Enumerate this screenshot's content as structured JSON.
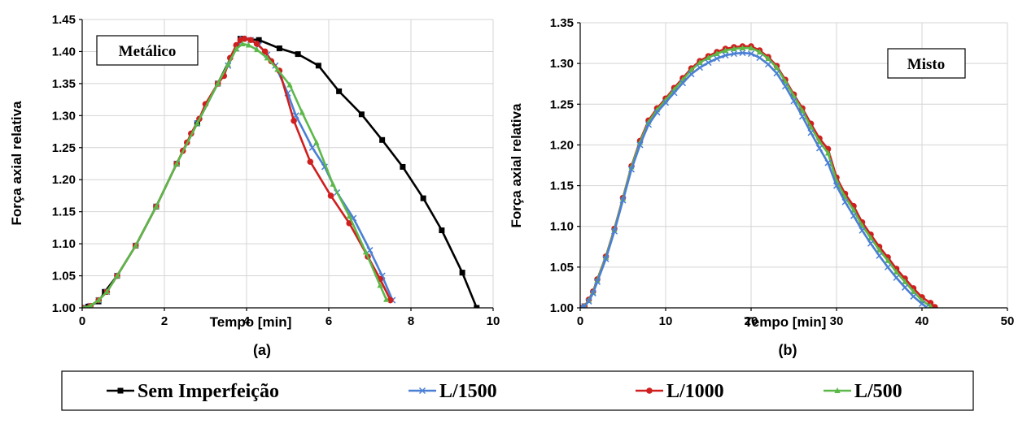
{
  "legend": [
    {
      "name": "Sem Imperfeição",
      "color": "#000000",
      "marker": "square"
    },
    {
      "name": "L/1500",
      "color": "#4a7fd4",
      "marker": "x"
    },
    {
      "name": "L/1000",
      "color": "#cf1f1f",
      "marker": "circle"
    },
    {
      "name": "L/500",
      "color": "#5cb848",
      "marker": "triangle"
    }
  ],
  "chart_data": [
    {
      "type": "line",
      "panel_label": "(a)",
      "annotation": "Metálico",
      "xlabel": "Tempo [min]",
      "ylabel": "Força axial relativa",
      "xlim": [
        0,
        10
      ],
      "ylim": [
        1.0,
        1.45
      ],
      "xticks": [
        "0",
        "2",
        "4",
        "6",
        "8",
        "10"
      ],
      "yticks": [
        "1.00",
        "1.05",
        "1.10",
        "1.15",
        "1.20",
        "1.25",
        "1.30",
        "1.35",
        "1.40",
        "1.45"
      ],
      "grid": true,
      "series": [
        {
          "name": "Sem Imperfeição",
          "color": "#000000",
          "marker": "square",
          "points": [
            [
              0,
              1.0
            ],
            [
              0.15,
              1.002
            ],
            [
              0.4,
              1.01
            ],
            [
              0.55,
              1.025
            ],
            [
              0.85,
              1.05
            ],
            [
              1.3,
              1.097
            ],
            [
              1.8,
              1.158
            ],
            [
              2.3,
              1.225
            ],
            [
              2.8,
              1.288
            ],
            [
              3.3,
              1.35
            ],
            [
              3.85,
              1.42
            ],
            [
              4.3,
              1.418
            ],
            [
              4.8,
              1.405
            ],
            [
              5.25,
              1.396
            ],
            [
              5.75,
              1.378
            ],
            [
              6.25,
              1.338
            ],
            [
              6.8,
              1.302
            ],
            [
              7.3,
              1.262
            ],
            [
              7.8,
              1.22
            ],
            [
              8.3,
              1.171
            ],
            [
              8.75,
              1.121
            ],
            [
              9.25,
              1.055
            ],
            [
              9.6,
              1.0
            ]
          ]
        },
        {
          "name": "L/1500",
          "color": "#4a7fd4",
          "marker": "x",
          "points": [
            [
              0,
              1.0
            ],
            [
              0.2,
              1.003
            ],
            [
              0.4,
              1.012
            ],
            [
              0.6,
              1.025
            ],
            [
              0.85,
              1.05
            ],
            [
              1.3,
              1.097
            ],
            [
              1.8,
              1.158
            ],
            [
              2.3,
              1.225
            ],
            [
              2.8,
              1.288
            ],
            [
              3.3,
              1.35
            ],
            [
              3.55,
              1.378
            ],
            [
              3.75,
              1.405
            ],
            [
              3.9,
              1.42
            ],
            [
              4.1,
              1.418
            ],
            [
              4.3,
              1.41
            ],
            [
              4.5,
              1.395
            ],
            [
              4.7,
              1.378
            ],
            [
              5.0,
              1.335
            ],
            [
              5.2,
              1.3
            ],
            [
              5.6,
              1.25
            ],
            [
              5.9,
              1.22
            ],
            [
              6.2,
              1.18
            ],
            [
              6.6,
              1.14
            ],
            [
              7.0,
              1.09
            ],
            [
              7.3,
              1.05
            ],
            [
              7.55,
              1.012
            ]
          ]
        },
        {
          "name": "L/1000",
          "color": "#cf1f1f",
          "marker": "circle",
          "points": [
            [
              0,
              1.0
            ],
            [
              0.2,
              1.003
            ],
            [
              0.4,
              1.012
            ],
            [
              0.6,
              1.025
            ],
            [
              0.85,
              1.05
            ],
            [
              1.3,
              1.097
            ],
            [
              1.8,
              1.158
            ],
            [
              2.3,
              1.225
            ],
            [
              2.45,
              1.245
            ],
            [
              2.55,
              1.258
            ],
            [
              2.65,
              1.272
            ],
            [
              2.85,
              1.295
            ],
            [
              3.0,
              1.318
            ],
            [
              3.3,
              1.35
            ],
            [
              3.45,
              1.362
            ],
            [
              3.6,
              1.39
            ],
            [
              3.75,
              1.41
            ],
            [
              3.85,
              1.418
            ],
            [
              3.95,
              1.42
            ],
            [
              4.1,
              1.418
            ],
            [
              4.25,
              1.412
            ],
            [
              4.45,
              1.4
            ],
            [
              4.6,
              1.385
            ],
            [
              4.8,
              1.37
            ],
            [
              5.15,
              1.292
            ],
            [
              5.55,
              1.228
            ],
            [
              6.05,
              1.175
            ],
            [
              6.5,
              1.132
            ],
            [
              6.95,
              1.08
            ],
            [
              7.25,
              1.045
            ],
            [
              7.5,
              1.012
            ]
          ]
        },
        {
          "name": "L/500",
          "color": "#5cb848",
          "marker": "triangle",
          "points": [
            [
              0,
              1.0
            ],
            [
              0.2,
              1.003
            ],
            [
              0.4,
              1.012
            ],
            [
              0.6,
              1.025
            ],
            [
              0.85,
              1.05
            ],
            [
              1.3,
              1.097
            ],
            [
              1.8,
              1.158
            ],
            [
              2.3,
              1.225
            ],
            [
              2.8,
              1.288
            ],
            [
              3.3,
              1.35
            ],
            [
              3.55,
              1.38
            ],
            [
              3.75,
              1.404
            ],
            [
              3.9,
              1.412
            ],
            [
              4.05,
              1.41
            ],
            [
              4.25,
              1.403
            ],
            [
              4.5,
              1.39
            ],
            [
              4.75,
              1.372
            ],
            [
              5.05,
              1.348
            ],
            [
              5.35,
              1.305
            ],
            [
              5.7,
              1.258
            ],
            [
              6.1,
              1.193
            ],
            [
              6.5,
              1.143
            ],
            [
              6.9,
              1.087
            ],
            [
              7.25,
              1.035
            ],
            [
              7.4,
              1.013
            ]
          ]
        }
      ]
    },
    {
      "type": "line",
      "panel_label": "(b)",
      "annotation": "Misto",
      "xlabel": "Tempo [min]",
      "ylabel": "Força axial relativa",
      "xlim": [
        0,
        50
      ],
      "ylim": [
        1.0,
        1.35
      ],
      "xticks": [
        "0",
        "10",
        "20",
        "30",
        "40",
        "50"
      ],
      "yticks": [
        "1.00",
        "1.05",
        "1.10",
        "1.15",
        "1.20",
        "1.25",
        "1.30",
        "1.35"
      ],
      "grid": true,
      "series": [
        {
          "name": "L/1000",
          "color": "#cf1f1f",
          "marker": "circle",
          "points": [
            [
              0,
              1.0
            ],
            [
              0.5,
              1.002
            ],
            [
              1.0,
              1.01
            ],
            [
              1.5,
              1.02
            ],
            [
              2,
              1.035
            ],
            [
              3,
              1.063
            ],
            [
              4,
              1.097
            ],
            [
              5,
              1.135
            ],
            [
              6,
              1.174
            ],
            [
              7,
              1.205
            ],
            [
              8,
              1.23
            ],
            [
              9,
              1.245
            ],
            [
              10,
              1.257
            ],
            [
              11,
              1.27
            ],
            [
              12,
              1.282
            ],
            [
              13,
              1.294
            ],
            [
              14,
              1.303
            ],
            [
              15,
              1.309
            ],
            [
              16,
              1.314
            ],
            [
              17,
              1.318
            ],
            [
              18,
              1.32
            ],
            [
              19,
              1.321
            ],
            [
              20,
              1.321
            ],
            [
              21,
              1.316
            ],
            [
              22,
              1.308
            ],
            [
              23,
              1.297
            ],
            [
              24,
              1.28
            ],
            [
              25,
              1.262
            ],
            [
              26,
              1.245
            ],
            [
              27,
              1.226
            ],
            [
              28,
              1.208
            ],
            [
              29,
              1.195
            ],
            [
              30,
              1.16
            ],
            [
              31,
              1.14
            ],
            [
              32,
              1.125
            ],
            [
              33,
              1.105
            ],
            [
              34,
              1.09
            ],
            [
              35,
              1.075
            ],
            [
              36,
              1.062
            ],
            [
              37,
              1.048
            ],
            [
              38,
              1.036
            ],
            [
              39,
              1.024
            ],
            [
              40,
              1.013
            ],
            [
              41,
              1.006
            ],
            [
              41.5,
              1.001
            ]
          ]
        },
        {
          "name": "L/500",
          "color": "#5cb848",
          "marker": "triangle",
          "points": [
            [
              0,
              1.0
            ],
            [
              0.5,
              1.002
            ],
            [
              1.0,
              1.009
            ],
            [
              1.5,
              1.019
            ],
            [
              2,
              1.034
            ],
            [
              3,
              1.062
            ],
            [
              4,
              1.096
            ],
            [
              5,
              1.134
            ],
            [
              6,
              1.173
            ],
            [
              7,
              1.203
            ],
            [
              8,
              1.228
            ],
            [
              9,
              1.243
            ],
            [
              10,
              1.255
            ],
            [
              11,
              1.268
            ],
            [
              12,
              1.28
            ],
            [
              13,
              1.292
            ],
            [
              14,
              1.301
            ],
            [
              15,
              1.307
            ],
            [
              16,
              1.312
            ],
            [
              17,
              1.316
            ],
            [
              18,
              1.318
            ],
            [
              19,
              1.319
            ],
            [
              20,
              1.319
            ],
            [
              21,
              1.314
            ],
            [
              22,
              1.306
            ],
            [
              23,
              1.295
            ],
            [
              24,
              1.278
            ],
            [
              25,
              1.26
            ],
            [
              26,
              1.242
            ],
            [
              27,
              1.222
            ],
            [
              28,
              1.204
            ],
            [
              29,
              1.19
            ],
            [
              30,
              1.156
            ],
            [
              31,
              1.136
            ],
            [
              32,
              1.12
            ],
            [
              33,
              1.101
            ],
            [
              34,
              1.086
            ],
            [
              35,
              1.071
            ],
            [
              36,
              1.058
            ],
            [
              37,
              1.044
            ],
            [
              38,
              1.032
            ],
            [
              39,
              1.02
            ],
            [
              40,
              1.009
            ],
            [
              41,
              1.002
            ]
          ]
        },
        {
          "name": "L/1500",
          "color": "#4a7fd4",
          "marker": "x",
          "points": [
            [
              0,
              1.0
            ],
            [
              0.5,
              1.002
            ],
            [
              1.0,
              1.008
            ],
            [
              1.5,
              1.018
            ],
            [
              2,
              1.032
            ],
            [
              3,
              1.06
            ],
            [
              4,
              1.094
            ],
            [
              5,
              1.132
            ],
            [
              6,
              1.17
            ],
            [
              7,
              1.2
            ],
            [
              8,
              1.225
            ],
            [
              9,
              1.24
            ],
            [
              10,
              1.252
            ],
            [
              11,
              1.264
            ],
            [
              12,
              1.276
            ],
            [
              13,
              1.287
            ],
            [
              14,
              1.295
            ],
            [
              15,
              1.301
            ],
            [
              16,
              1.306
            ],
            [
              17,
              1.31
            ],
            [
              18,
              1.312
            ],
            [
              19,
              1.313
            ],
            [
              20,
              1.312
            ],
            [
              21,
              1.307
            ],
            [
              22,
              1.299
            ],
            [
              23,
              1.288
            ],
            [
              24,
              1.272
            ],
            [
              25,
              1.254
            ],
            [
              26,
              1.235
            ],
            [
              27,
              1.215
            ],
            [
              28,
              1.196
            ],
            [
              29,
              1.178
            ],
            [
              30,
              1.15
            ],
            [
              31,
              1.13
            ],
            [
              32,
              1.113
            ],
            [
              33,
              1.095
            ],
            [
              34,
              1.079
            ],
            [
              35,
              1.064
            ],
            [
              36,
              1.05
            ],
            [
              37,
              1.037
            ],
            [
              38,
              1.025
            ],
            [
              39,
              1.014
            ],
            [
              40,
              1.005
            ],
            [
              40.5,
              1.001
            ]
          ]
        }
      ]
    }
  ]
}
